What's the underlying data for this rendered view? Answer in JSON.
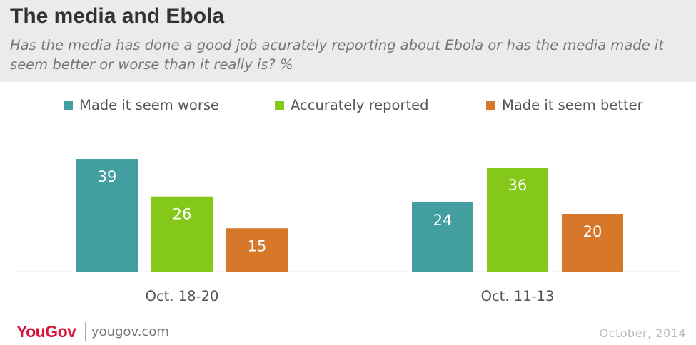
{
  "chart_data": {
    "type": "bar",
    "title": "The media and Ebola",
    "subtitle": "Has the media has done a good job acurately reporting about Ebola or has the media made it seem better or worse than it really is? %",
    "categories": [
      "Oct. 18-20",
      "Oct. 11-13"
    ],
    "series": [
      {
        "name": "Made it seem worse",
        "color": "#439ea0",
        "values": [
          39,
          24
        ]
      },
      {
        "name": "Accurately reported",
        "color": "#84c81a",
        "values": [
          26,
          36
        ]
      },
      {
        "name": "Made it seem better",
        "color": "#d6772a",
        "values": [
          15,
          20
        ]
      }
    ],
    "data_labels": true,
    "label_color": "#ffffff",
    "legend_position": "top",
    "grid": false,
    "ylim": [
      0,
      40
    ]
  },
  "footer": {
    "brand": "YouGov",
    "url": "yougov.com",
    "date": "October, 2014",
    "brand_color": "#d7153a"
  }
}
